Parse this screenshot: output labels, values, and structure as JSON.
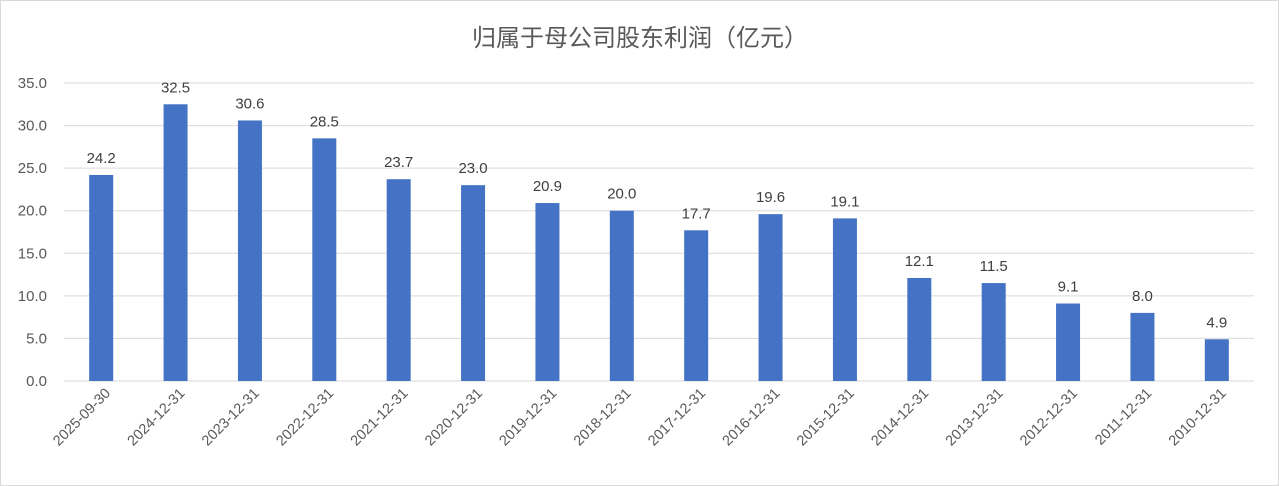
{
  "chart_data": {
    "type": "bar",
    "title": "归属于母公司股东利润（亿元）",
    "categories": [
      "2025-09-30",
      "2024-12-31",
      "2023-12-31",
      "2022-12-31",
      "2021-12-31",
      "2020-12-31",
      "2019-12-31",
      "2018-12-31",
      "2017-12-31",
      "2016-12-31",
      "2015-12-31",
      "2014-12-31",
      "2013-12-31",
      "2012-12-31",
      "2011-12-31",
      "2010-12-31"
    ],
    "values": [
      24.2,
      32.5,
      30.6,
      28.5,
      23.7,
      23.0,
      20.9,
      20.0,
      17.7,
      19.6,
      19.1,
      12.1,
      11.5,
      9.1,
      8.0,
      4.9
    ],
    "value_labels": [
      "24.2",
      "32.5",
      "30.6",
      "28.5",
      "23.7",
      "23.0",
      "20.9",
      "20.0",
      "17.7",
      "19.6",
      "19.1",
      "12.1",
      "11.5",
      "9.1",
      "8.0",
      "4.9"
    ],
    "yticks": [
      "0.0",
      "5.0",
      "10.0",
      "15.0",
      "20.0",
      "25.0",
      "30.0",
      "35.0"
    ],
    "ylim": [
      0,
      35
    ],
    "grid": true,
    "bar_color": "#4472c4",
    "grid_color": "#d9d9d9"
  }
}
